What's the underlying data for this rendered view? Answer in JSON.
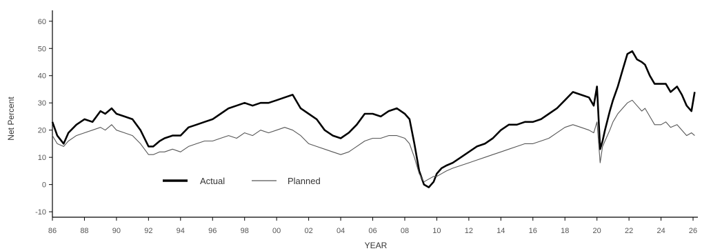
{
  "chart_data": {
    "type": "line",
    "xlabel": "YEAR",
    "ylabel": "Net Percent",
    "xlim": [
      1986,
      2026.3
    ],
    "ylim": [
      -12,
      64
    ],
    "yticks": [
      -10,
      0,
      10,
      20,
      30,
      40,
      50,
      60
    ],
    "xticks": [
      {
        "year": 1986,
        "label": "86"
      },
      {
        "year": 1988,
        "label": "88"
      },
      {
        "year": 1990,
        "label": "90"
      },
      {
        "year": 1992,
        "label": "92"
      },
      {
        "year": 1994,
        "label": "94"
      },
      {
        "year": 1996,
        "label": "96"
      },
      {
        "year": 1998,
        "label": "98"
      },
      {
        "year": 2000,
        "label": "00"
      },
      {
        "year": 2002,
        "label": "02"
      },
      {
        "year": 2004,
        "label": "04"
      },
      {
        "year": 2006,
        "label": "06"
      },
      {
        "year": 2008,
        "label": "08"
      },
      {
        "year": 2010,
        "label": "10"
      },
      {
        "year": 2012,
        "label": "12"
      },
      {
        "year": 2014,
        "label": "14"
      },
      {
        "year": 2016,
        "label": "16"
      },
      {
        "year": 2018,
        "label": "18"
      },
      {
        "year": 2020,
        "label": "20"
      },
      {
        "year": 2022,
        "label": "22"
      },
      {
        "year": 2024,
        "label": "24"
      },
      {
        "year": 2026,
        "label": "26"
      }
    ],
    "legend": {
      "placement": "lower-left"
    },
    "series": [
      {
        "name": "Actual",
        "color": "#000000",
        "x": [
          1986.0,
          1986.3,
          1986.7,
          1987.0,
          1987.5,
          1988.0,
          1988.5,
          1989.0,
          1989.3,
          1989.7,
          1990.0,
          1990.5,
          1991.0,
          1991.5,
          1992.0,
          1992.3,
          1992.7,
          1993.0,
          1993.5,
          1994.0,
          1994.5,
          1995.0,
          1995.5,
          1996.0,
          1996.5,
          1997.0,
          1997.5,
          1998.0,
          1998.5,
          1999.0,
          1999.5,
          2000.0,
          2000.5,
          2001.0,
          2001.5,
          2002.0,
          2002.5,
          2003.0,
          2003.5,
          2004.0,
          2004.5,
          2005.0,
          2005.5,
          2006.0,
          2006.5,
          2007.0,
          2007.5,
          2008.0,
          2008.3,
          2008.6,
          2008.9,
          2009.2,
          2009.5,
          2009.8,
          2010.0,
          2010.3,
          2010.6,
          2011.0,
          2011.5,
          2012.0,
          2012.5,
          2013.0,
          2013.5,
          2014.0,
          2014.5,
          2015.0,
          2015.5,
          2016.0,
          2016.5,
          2017.0,
          2017.5,
          2018.0,
          2018.5,
          2019.0,
          2019.5,
          2019.8,
          2020.0,
          2020.2,
          2020.35,
          2020.5,
          2020.8,
          2021.0,
          2021.3,
          2021.6,
          2021.9,
          2022.2,
          2022.5,
          2022.8,
          2023.0,
          2023.3,
          2023.6,
          2024.0,
          2024.3,
          2024.6,
          2025.0,
          2025.3,
          2025.6,
          2025.9,
          2026.1
        ],
        "y": [
          23,
          18,
          15,
          19,
          22,
          24,
          23,
          27,
          26,
          28,
          26,
          25,
          24,
          20,
          14,
          14,
          16,
          17,
          18,
          18,
          21,
          22,
          23,
          24,
          26,
          28,
          29,
          30,
          29,
          30,
          30,
          31,
          32,
          33,
          28,
          26,
          24,
          20,
          18,
          17,
          19,
          22,
          26,
          26,
          25,
          27,
          28,
          26,
          24,
          15,
          5,
          0,
          -1,
          1,
          4,
          6,
          7,
          8,
          10,
          12,
          14,
          15,
          17,
          20,
          22,
          22,
          23,
          23,
          24,
          26,
          28,
          31,
          34,
          33,
          32,
          29,
          36,
          13,
          16,
          20,
          27,
          31,
          36,
          42,
          48,
          49,
          46,
          45,
          44,
          40,
          37,
          37,
          37,
          34,
          36,
          33,
          29,
          27,
          34
        ]
      },
      {
        "name": "Planned",
        "color": "#555555",
        "x": [
          1986.0,
          1986.3,
          1986.7,
          1987.0,
          1987.5,
          1988.0,
          1988.5,
          1989.0,
          1989.3,
          1989.7,
          1990.0,
          1990.5,
          1991.0,
          1991.5,
          1992.0,
          1992.3,
          1992.7,
          1993.0,
          1993.5,
          1994.0,
          1994.5,
          1995.0,
          1995.5,
          1996.0,
          1996.5,
          1997.0,
          1997.5,
          1998.0,
          1998.5,
          1999.0,
          1999.5,
          2000.0,
          2000.5,
          2001.0,
          2001.5,
          2002.0,
          2002.5,
          2003.0,
          2003.5,
          2004.0,
          2004.5,
          2005.0,
          2005.5,
          2006.0,
          2006.5,
          2007.0,
          2007.5,
          2008.0,
          2008.3,
          2008.6,
          2008.9,
          2009.2,
          2009.5,
          2009.8,
          2010.0,
          2010.3,
          2010.6,
          2011.0,
          2011.5,
          2012.0,
          2012.5,
          2013.0,
          2013.5,
          2014.0,
          2014.5,
          2015.0,
          2015.5,
          2016.0,
          2016.5,
          2017.0,
          2017.5,
          2018.0,
          2018.5,
          2019.0,
          2019.5,
          2019.8,
          2020.0,
          2020.2,
          2020.35,
          2020.5,
          2020.8,
          2021.0,
          2021.3,
          2021.6,
          2021.9,
          2022.2,
          2022.5,
          2022.8,
          2023.0,
          2023.3,
          2023.6,
          2024.0,
          2024.3,
          2024.6,
          2025.0,
          2025.3,
          2025.6,
          2025.9,
          2026.1
        ],
        "y": [
          18,
          15,
          14,
          16,
          18,
          19,
          20,
          21,
          20,
          22,
          20,
          19,
          18,
          15,
          11,
          11,
          12,
          12,
          13,
          12,
          14,
          15,
          16,
          16,
          17,
          18,
          17,
          19,
          18,
          20,
          19,
          20,
          21,
          20,
          18,
          15,
          14,
          13,
          12,
          11,
          12,
          14,
          16,
          17,
          17,
          18,
          18,
          17,
          15,
          10,
          4,
          1,
          2,
          3,
          3,
          4,
          5,
          6,
          7,
          8,
          9,
          10,
          11,
          12,
          13,
          14,
          15,
          15,
          16,
          17,
          19,
          21,
          22,
          21,
          20,
          19,
          23,
          8,
          14,
          16,
          20,
          23,
          26,
          28,
          30,
          31,
          29,
          27,
          28,
          25,
          22,
          22,
          23,
          21,
          22,
          20,
          18,
          19,
          18
        ]
      }
    ]
  }
}
